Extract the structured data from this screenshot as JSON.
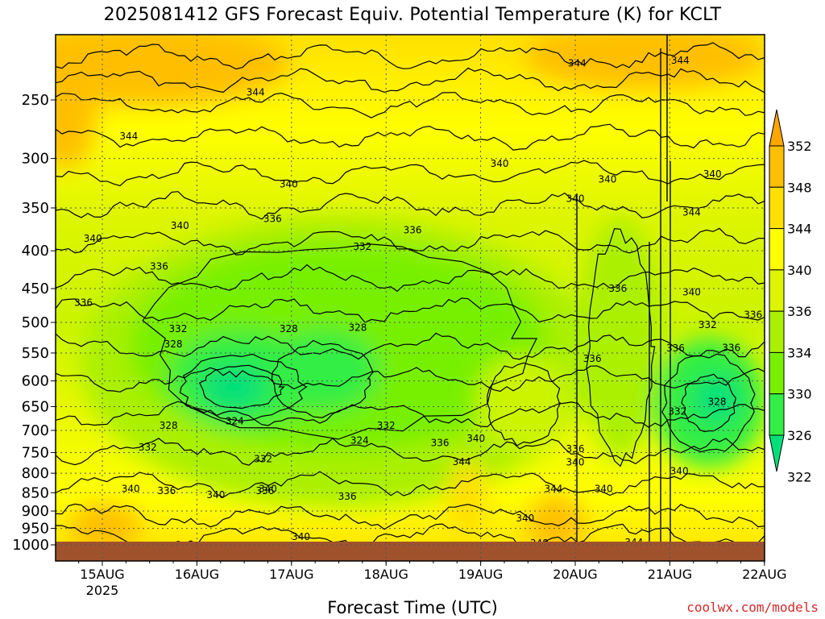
{
  "title": "2025081412 GFS Forecast Equiv. Potential Temperature (K) for KCLT",
  "credit": "coolwx.com/models",
  "chart_data": {
    "type": "heatmap",
    "title": "2025081412 GFS Forecast Equiv. Potential Temperature (K) for KCLT",
    "xlabel": "Forecast Time (UTC)",
    "ylabel": "",
    "x_ticks": [
      "15AUG",
      "16AUG",
      "17AUG",
      "18AUG",
      "19AUG",
      "20AUG",
      "21AUG",
      "22AUG"
    ],
    "x_year_label": "2025",
    "y_ticks": [
      250,
      300,
      350,
      400,
      450,
      500,
      550,
      600,
      650,
      700,
      750,
      800,
      850,
      900,
      950,
      1000
    ],
    "y_axis": "pressure (hPa), inverted log scale",
    "grid": true,
    "colorbar": {
      "levels": [
        322,
        326,
        330,
        334,
        336,
        340,
        344,
        348,
        352
      ],
      "colors": [
        "#00e07a",
        "#33ee44",
        "#77f000",
        "#aaf000",
        "#ddf500",
        "#ffff00",
        "#ffe000",
        "#ffbf00",
        "#ffa500"
      ],
      "label_text": [
        "352",
        "348",
        "344",
        "340",
        "336",
        "334",
        "330",
        "326",
        "322"
      ],
      "placement": "right"
    },
    "contour_labels": [
      {
        "text": "344",
        "t": 5.02,
        "p": 223
      },
      {
        "text": "344",
        "t": 6.11,
        "p": 221
      },
      {
        "text": "344",
        "t": 1.62,
        "p": 244
      },
      {
        "text": "344",
        "t": 0.28,
        "p": 280
      },
      {
        "text": "340",
        "t": 4.2,
        "p": 305
      },
      {
        "text": "340",
        "t": 5.34,
        "p": 320
      },
      {
        "text": "340",
        "t": 6.45,
        "p": 315
      },
      {
        "text": "340",
        "t": 1.97,
        "p": 325
      },
      {
        "text": "340",
        "t": 5.0,
        "p": 340
      },
      {
        "text": "340",
        "t": 0.82,
        "p": 370
      },
      {
        "text": "344",
        "t": 6.23,
        "p": 355
      },
      {
        "text": "340",
        "t": -0.1,
        "p": 385
      },
      {
        "text": "336",
        "t": 1.8,
        "p": 362
      },
      {
        "text": "336",
        "t": 3.28,
        "p": 375
      },
      {
        "text": "336",
        "t": 0.6,
        "p": 420
      },
      {
        "text": "332",
        "t": 2.75,
        "p": 395
      },
      {
        "text": "336",
        "t": 5.45,
        "p": 450
      },
      {
        "text": "340",
        "t": 6.23,
        "p": 455
      },
      {
        "text": "336",
        "t": 6.88,
        "p": 488
      },
      {
        "text": "336",
        "t": -0.2,
        "p": 470
      },
      {
        "text": "332",
        "t": 0.8,
        "p": 510
      },
      {
        "text": "328",
        "t": 1.97,
        "p": 510
      },
      {
        "text": "328",
        "t": 2.7,
        "p": 508
      },
      {
        "text": "332",
        "t": 6.4,
        "p": 504
      },
      {
        "text": "328",
        "t": 0.75,
        "p": 535
      },
      {
        "text": "336",
        "t": 6.06,
        "p": 542
      },
      {
        "text": "336",
        "t": 6.65,
        "p": 541
      },
      {
        "text": "336",
        "t": 5.18,
        "p": 560
      },
      {
        "text": "328",
        "t": 6.5,
        "p": 640
      },
      {
        "text": "332",
        "t": 6.08,
        "p": 660
      },
      {
        "text": "328",
        "t": 0.7,
        "p": 690
      },
      {
        "text": "324",
        "t": 1.4,
        "p": 680
      },
      {
        "text": "332",
        "t": 3.0,
        "p": 690
      },
      {
        "text": "324",
        "t": 2.72,
        "p": 722
      },
      {
        "text": "336",
        "t": 3.57,
        "p": 728
      },
      {
        "text": "340",
        "t": 3.95,
        "p": 718
      },
      {
        "text": "332",
        "t": 0.48,
        "p": 738
      },
      {
        "text": "336",
        "t": 5.0,
        "p": 742
      },
      {
        "text": "340",
        "t": 5.0,
        "p": 773
      },
      {
        "text": "332",
        "t": 1.7,
        "p": 765
      },
      {
        "text": "344",
        "t": 3.8,
        "p": 772
      },
      {
        "text": "340",
        "t": 6.1,
        "p": 795
      },
      {
        "text": "340",
        "t": 0.3,
        "p": 840
      },
      {
        "text": "336",
        "t": 0.68,
        "p": 845
      },
      {
        "text": "340",
        "t": 1.2,
        "p": 856
      },
      {
        "text": "336",
        "t": 1.72,
        "p": 845
      },
      {
        "text": "340",
        "t": 1.75,
        "p": 840
      },
      {
        "text": "336",
        "t": 2.59,
        "p": 860
      },
      {
        "text": "344",
        "t": 4.77,
        "p": 840
      },
      {
        "text": "340",
        "t": 5.3,
        "p": 840
      },
      {
        "text": "340",
        "t": 4.47,
        "p": 920
      },
      {
        "text": "340",
        "t": 2.1,
        "p": 975
      },
      {
        "text": "348",
        "t": 4.62,
        "p": 995
      },
      {
        "text": "344",
        "t": 5.62,
        "p": 993
      }
    ]
  }
}
